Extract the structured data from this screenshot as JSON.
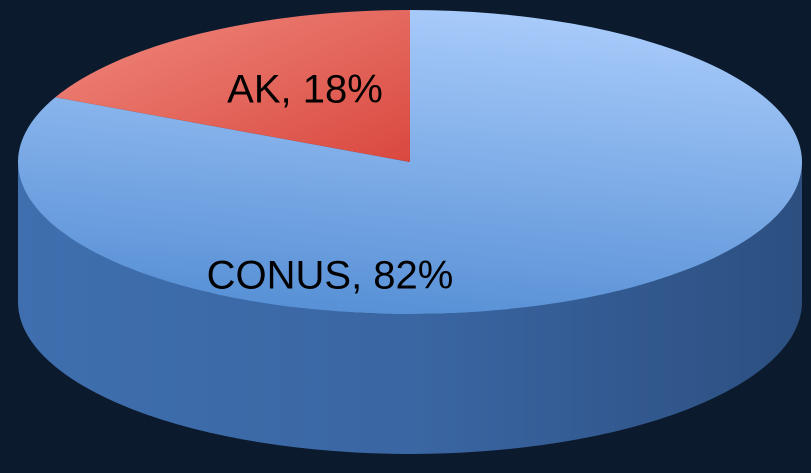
{
  "chart_data": {
    "type": "pie",
    "values": [
      82,
      18
    ],
    "value_labels": [
      "CONUS, 82%",
      "AK, 18%"
    ],
    "colors": [
      "#6fa3e8",
      "#e8655a"
    ]
  }
}
